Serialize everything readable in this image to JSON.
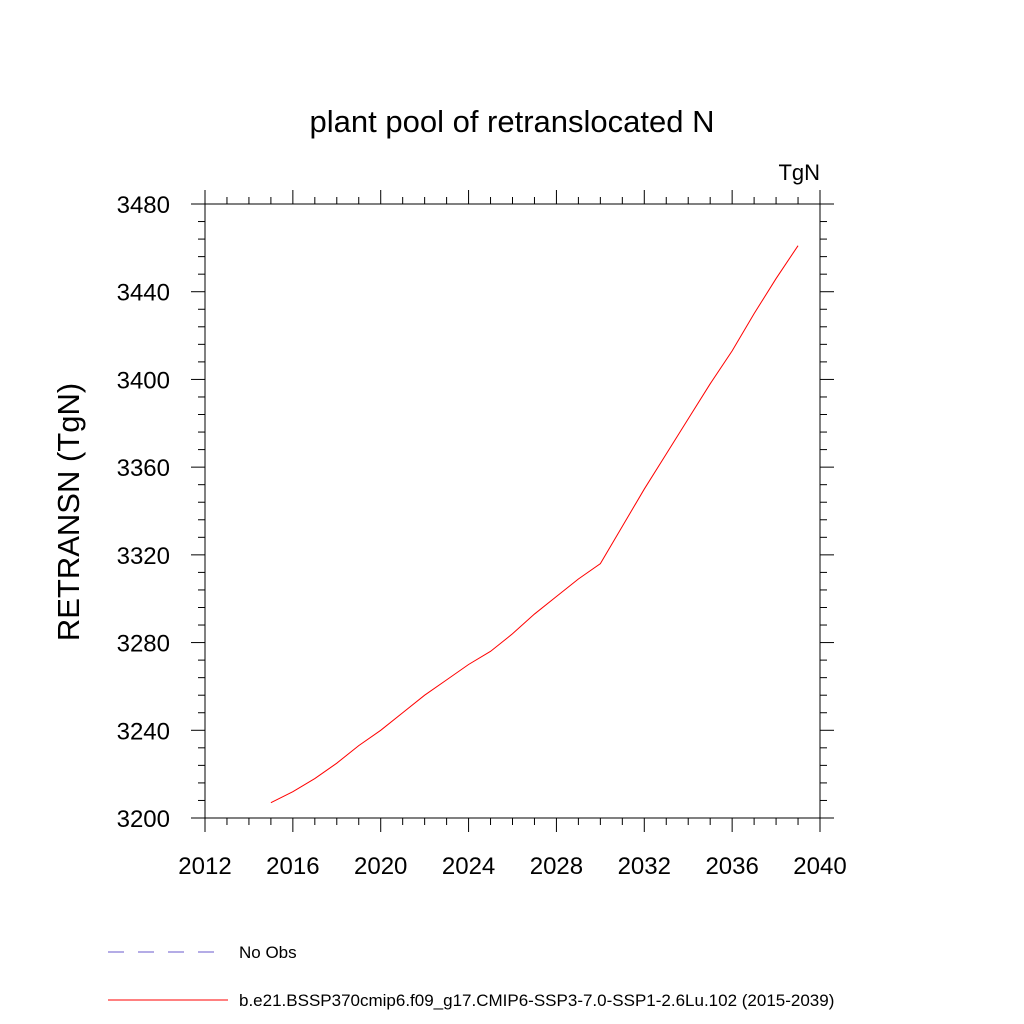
{
  "chart_data": {
    "type": "line",
    "title": "plant pool of retranslocated N",
    "units": "TgN",
    "ylabel": "RETRANSN  (TgN)",
    "xlabel": "",
    "xlim": [
      2012,
      2040
    ],
    "ylim": [
      3200,
      3480
    ],
    "x_ticks": [
      "2012",
      "2016",
      "2020",
      "2024",
      "2028",
      "2032",
      "2036",
      "2040"
    ],
    "y_ticks": [
      "3200",
      "3240",
      "3280",
      "3320",
      "3360",
      "3400",
      "3440",
      "3480"
    ],
    "series": [
      {
        "name": "b.e21.BSSP370cmip6.f09_g17.CMIP6-SSP3-7.0-SSP1-2.6Lu.102 (2015-2039)",
        "color": "#ff0000",
        "x": [
          2015,
          2016,
          2017,
          2018,
          2019,
          2020,
          2021,
          2022,
          2023,
          2024,
          2025,
          2026,
          2027,
          2028,
          2029,
          2030,
          2031,
          2032,
          2033,
          2034,
          2035,
          2036,
          2037,
          2038,
          2039
        ],
        "y": [
          3207,
          3212,
          3218,
          3225,
          3233,
          3240,
          3248,
          3256,
          3263,
          3270,
          3276,
          3284,
          3293,
          3301,
          3309,
          3316,
          3333,
          3350,
          3366,
          3382,
          3398,
          3413,
          3430,
          3446,
          3461
        ]
      }
    ],
    "legend": [
      {
        "label": "No Obs",
        "style": "dashed",
        "color": "#6a5acd"
      },
      {
        "label": "b.e21.BSSP370cmip6.f09_g17.CMIP6-SSP3-7.0-SSP1-2.6Lu.102 (2015-2039)",
        "style": "solid",
        "color": "#ff0000"
      }
    ],
    "legend_position": "bottom-left",
    "grid": false
  }
}
